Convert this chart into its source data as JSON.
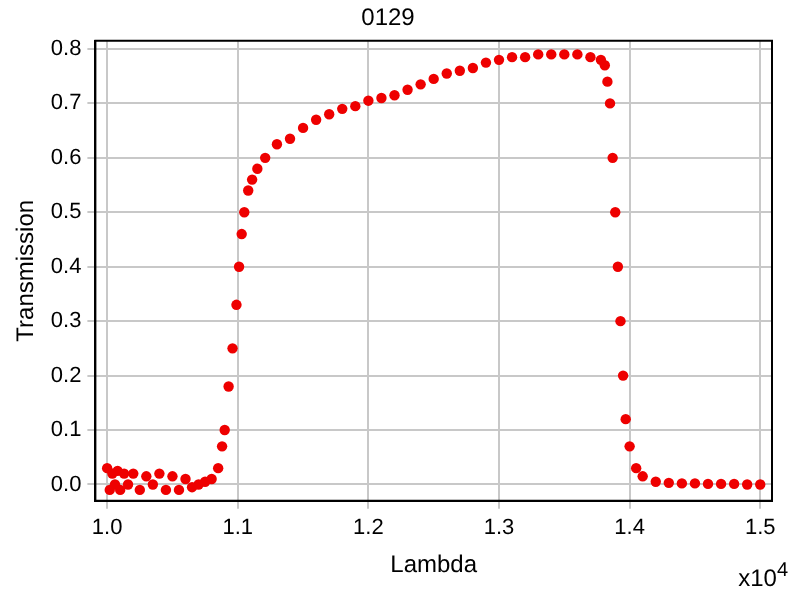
{
  "chart_data": {
    "type": "scatter",
    "title": "0129",
    "xlabel": "Lambda",
    "ylabel": "Transmission",
    "annotations": [
      "x10$^{4}$"
    ],
    "xlim": [
      0.991,
      1.509
    ],
    "xticks": [
      {
        "value": 1,
        "label": "1.0"
      },
      1.1,
      1.2,
      1.3,
      1.4,
      1.5
    ],
    "ylim": [
      -0.03,
      0.815
    ],
    "yticks": [
      {
        "value": 0,
        "label": "0.0"
      },
      0.1,
      0.2,
      0.3,
      0.4,
      0.5,
      0.6,
      0.7,
      0.8
    ],
    "grid": true,
    "legend": false,
    "marker": "circle",
    "series": [
      {
        "color": "#ee0000",
        "x": [
          1.0,
          1.002,
          1.004,
          1.006,
          1.008,
          1.01,
          1.013,
          1.016,
          1.02,
          1.025,
          1.03,
          1.035,
          1.04,
          1.045,
          1.05,
          1.055,
          1.06,
          1.065,
          1.07,
          1.075,
          1.08,
          1.085,
          1.088,
          1.09,
          1.093,
          1.096,
          1.099,
          1.101,
          1.103,
          1.105,
          1.108,
          1.111,
          1.115,
          1.121,
          1.13,
          1.14,
          1.15,
          1.16,
          1.17,
          1.18,
          1.19,
          1.2,
          1.21,
          1.22,
          1.23,
          1.24,
          1.25,
          1.26,
          1.27,
          1.28,
          1.29,
          1.3,
          1.31,
          1.32,
          1.33,
          1.34,
          1.35,
          1.36,
          1.37,
          1.378,
          1.381,
          1.383,
          1.385,
          1.387,
          1.389,
          1.391,
          1.393,
          1.395,
          1.397,
          1.4,
          1.405,
          1.41,
          1.42,
          1.43,
          1.44,
          1.45,
          1.46,
          1.47,
          1.48,
          1.49,
          1.5
        ],
        "values": [
          0.03,
          -0.01,
          0.02,
          0.0,
          0.025,
          -0.01,
          0.02,
          0.0,
          0.02,
          -0.01,
          0.015,
          0.0,
          0.02,
          -0.01,
          0.015,
          -0.01,
          0.01,
          -0.005,
          0.0,
          0.005,
          0.01,
          0.03,
          0.07,
          0.1,
          0.18,
          0.25,
          0.33,
          0.4,
          0.46,
          0.5,
          0.54,
          0.56,
          0.58,
          0.6,
          0.625,
          0.635,
          0.655,
          0.67,
          0.68,
          0.69,
          0.695,
          0.705,
          0.71,
          0.715,
          0.725,
          0.735,
          0.745,
          0.755,
          0.76,
          0.765,
          0.775,
          0.78,
          0.785,
          0.785,
          0.79,
          0.79,
          0.79,
          0.79,
          0.785,
          0.78,
          0.77,
          0.74,
          0.7,
          0.6,
          0.5,
          0.4,
          0.3,
          0.2,
          0.12,
          0.07,
          0.03,
          0.015,
          0.005,
          0.003,
          0.002,
          0.002,
          0.001,
          0.001,
          0.001,
          0.0,
          0.0
        ]
      }
    ]
  }
}
